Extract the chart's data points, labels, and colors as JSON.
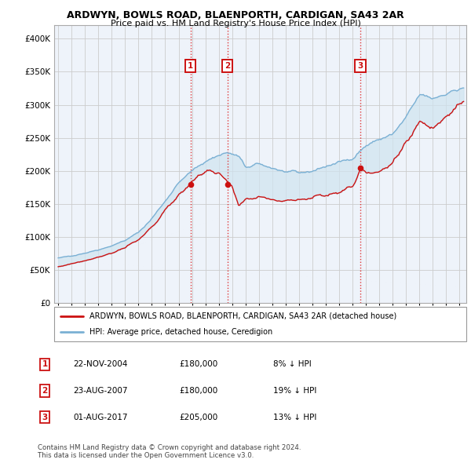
{
  "title": "ARDWYN, BOWLS ROAD, BLAENPORTH, CARDIGAN, SA43 2AR",
  "subtitle": "Price paid vs. HM Land Registry's House Price Index (HPI)",
  "ylim": [
    0,
    420000
  ],
  "yticks": [
    0,
    50000,
    100000,
    150000,
    200000,
    250000,
    300000,
    350000,
    400000
  ],
  "ytick_labels": [
    "£0",
    "£50K",
    "£100K",
    "£150K",
    "£200K",
    "£250K",
    "£300K",
    "£350K",
    "£400K"
  ],
  "xlim_start": 1994.7,
  "xlim_end": 2025.5,
  "hpi_color": "#7ab0d4",
  "hpi_fill_color": "#d0e4f0",
  "price_color": "#cc1111",
  "grid_color": "#cccccc",
  "background_color": "#eef3fa",
  "transactions": [
    {
      "date_num": 2004.9,
      "price": 180000,
      "label": "1"
    },
    {
      "date_num": 2007.65,
      "price": 180000,
      "label": "2"
    },
    {
      "date_num": 2017.58,
      "price": 205000,
      "label": "3"
    }
  ],
  "legend_entries": [
    "ARDWYN, BOWLS ROAD, BLAENPORTH, CARDIGAN, SA43 2AR (detached house)",
    "HPI: Average price, detached house, Ceredigion"
  ],
  "table_rows": [
    {
      "num": "1",
      "date": "22-NOV-2004",
      "price": "£180,000",
      "hpi": "8% ↓ HPI"
    },
    {
      "num": "2",
      "date": "23-AUG-2007",
      "price": "£180,000",
      "hpi": "19% ↓ HPI"
    },
    {
      "num": "3",
      "date": "01-AUG-2017",
      "price": "£205,000",
      "hpi": "13% ↓ HPI"
    }
  ],
  "footnote": "Contains HM Land Registry data © Crown copyright and database right 2024.\nThis data is licensed under the Open Government Licence v3.0."
}
